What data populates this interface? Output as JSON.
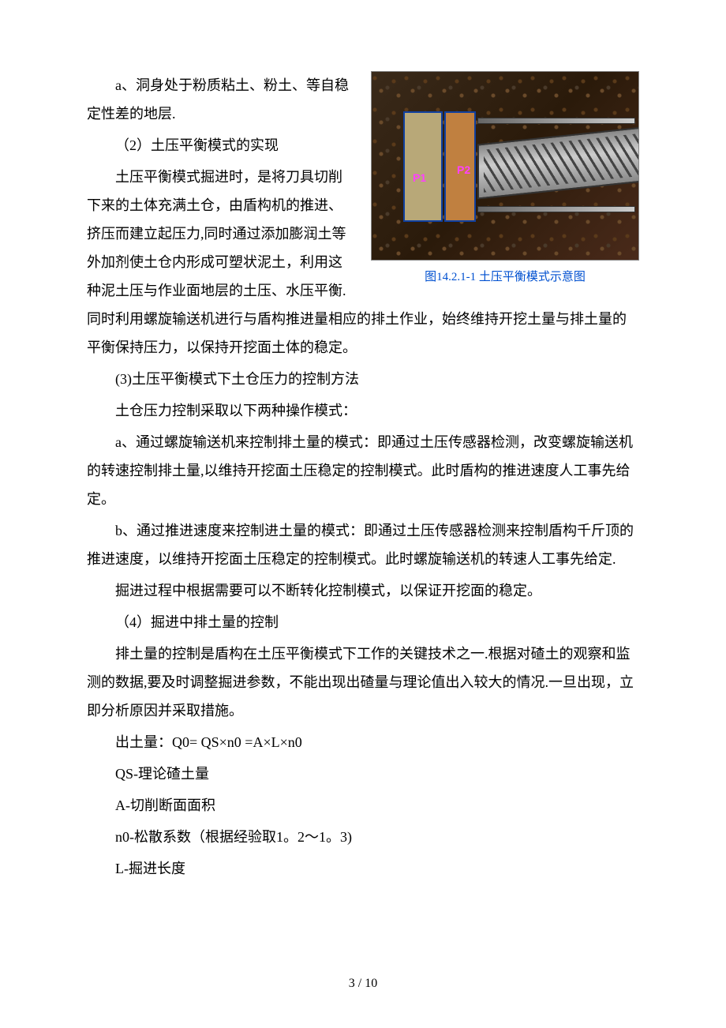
{
  "figure": {
    "p1": "P1",
    "p2": "P2",
    "caption": "图14.2.1-1 土压平衡模式示意图"
  },
  "paragraphs": {
    "a1": "a、洞身处于粉质粘土、粉土、等自稳定性差的地层.",
    "sec2_title": "（2）土压平衡模式的实现",
    "sec2_body": "土压平衡模式掘进时，是将刀具切削下来的土体充满土仓，由盾构机的推进、挤压而建立起压力,同时通过添加膨润土等外加剂使土仓内形成可塑状泥土，利用这种泥土压与作业面地层的土压、水压平衡.同时利用螺旋输送机进行与盾构推进量相应的排土作业，始终维持开挖土量与排土量的平衡保持压力，以保持开挖面土体的稳定。",
    "sec3_title": "(3)土压平衡模式下土仓压力的控制方法",
    "sec3_intro": "土仓压力控制采取以下两种操作模式：",
    "sec3_a": "a、通过螺旋输送机来控制排土量的模式：即通过土压传感器检测，改变螺旋输送机的转速控制排土量,以维持开挖面土压稳定的控制模式。此时盾构的推进速度人工事先给定。",
    "sec3_b": "b、通过推进速度来控制进土量的模式：即通过土压传感器检测来控制盾构千斤顶的推进速度，以维持开挖面土压稳定的控制模式。此时螺旋输送机的转速人工事先给定.",
    "sec3_end": "掘进过程中根据需要可以不断转化控制模式，以保证开挖面的稳定。",
    "sec4_title": "（4）掘进中排土量的控制",
    "sec4_body": "排土量的控制是盾构在土压平衡模式下工作的关键技术之一.根据对碴土的观察和监测的数据,要及时调整掘进参数，不能出现出碴量与理论值出入较大的情况.一旦出现，立即分析原因并采取措施。",
    "formula": "出土量：Q0= QS×n0 =A×L×n0",
    "def_qs": "QS-理论碴土量",
    "def_a": "A-切削断面面积",
    "def_n0": "n0-松散系数（根据经验取1。2～1。3)",
    "def_l": "L-掘进长度"
  },
  "pageNumber": "3 / 10"
}
